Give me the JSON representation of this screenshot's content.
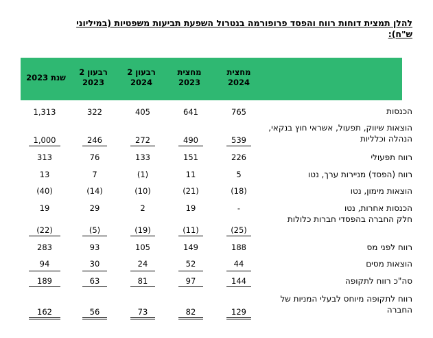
{
  "title": "להלן תמצית דוחות רווח והפסד פרופורמה בנטרול השפעת תביעות משפטיות (במיליוני ש\"ח):",
  "columns": [
    {
      "line1": "מחצית",
      "line2": "2024"
    },
    {
      "line1": "מחצית",
      "line2": "2023"
    },
    {
      "line1": "רבעון 2",
      "line2": "2024"
    },
    {
      "line1": "רבעון 2",
      "line2": "2023"
    },
    {
      "line1": "שנת 2023",
      "line2": ""
    }
  ],
  "rows": [
    {
      "label": "הכנסות",
      "values": [
        "765",
        "641",
        "405",
        "322",
        "1,313"
      ]
    },
    {
      "label": "הוצאות שיווק, תפעול, אשראי חוץ בנקאי, הנהלה וכלליות",
      "values": [
        "539",
        "490",
        "272",
        "246",
        "1,000"
      ]
    },
    {
      "label": "רווח תפעולי",
      "values": [
        "226",
        "151",
        "133",
        "76",
        "313"
      ]
    },
    {
      "label": "רווח (הפסד) מניירות ערך, נטו",
      "values": [
        "5",
        "11",
        "(1)",
        "7",
        "13"
      ]
    },
    {
      "label": "הוצאות מימון, נטו",
      "values": [
        "(18)",
        "(21)",
        "(10)",
        "(14)",
        "(40)"
      ]
    },
    {
      "label": "הכנסות אחרות, נטו",
      "values": [
        "-",
        "19",
        "2",
        "29",
        "19"
      ]
    },
    {
      "label": "חלק החברה בהפסדי חברות כלולות",
      "values": [
        "(25)",
        "(11)",
        "(19)",
        "(5)",
        "(22)"
      ]
    },
    {
      "label": "רווח לפני מס",
      "values": [
        "188",
        "149",
        "105",
        "93",
        "283"
      ]
    },
    {
      "label": "הוצאות מסים",
      "values": [
        "44",
        "52",
        "24",
        "30",
        "94"
      ]
    },
    {
      "label": "סה\"כ רווח לתקופה",
      "values": [
        "144",
        "97",
        "81",
        "63",
        "189"
      ]
    },
    {
      "label": "רווח לתקופה מיוחס לבעלי המניות של החברה",
      "values": [
        "129",
        "82",
        "73",
        "56",
        "162"
      ]
    }
  ]
}
